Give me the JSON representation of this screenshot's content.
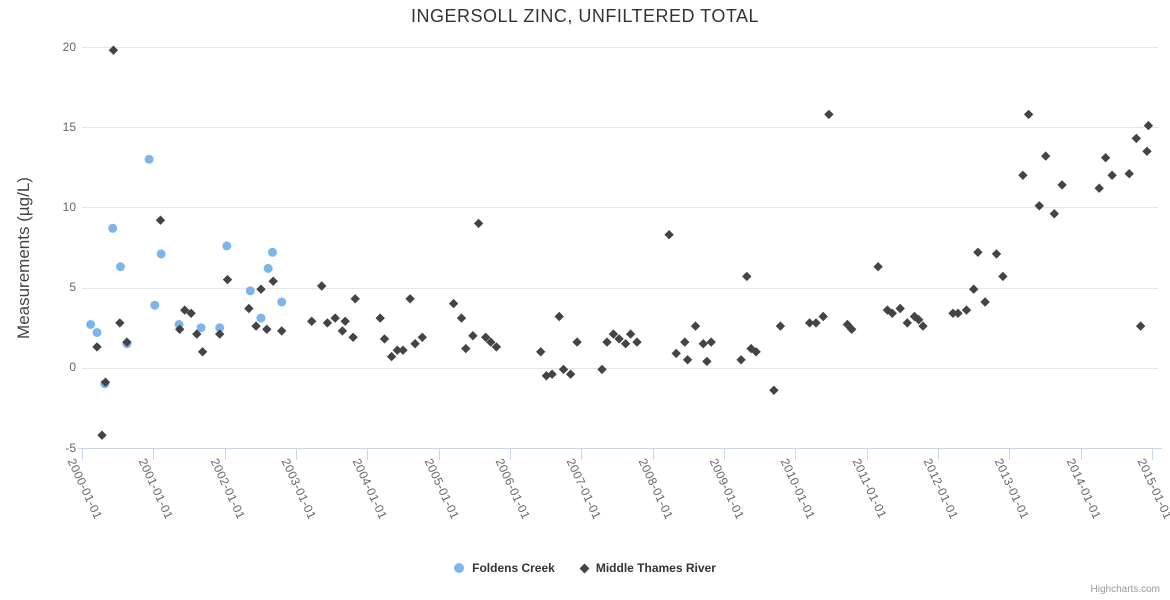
{
  "credit": "Highcharts.com",
  "colors": {
    "title_text": "#333333",
    "axis_title_text": "#444444",
    "axis_label_text": "#666666",
    "grid_line": "#e6e6e6",
    "axis_line": "#ccd6eb",
    "legend_text": "#333333",
    "credit_text": "#999999"
  },
  "chart_data": {
    "type": "scatter",
    "title": "INGERSOLL ZINC, UNFILTERED TOTAL",
    "xlabel": "",
    "ylabel": "Measurements (µg/L)",
    "ylim": [
      -5,
      20
    ],
    "yticks": [
      -5,
      0,
      5,
      10,
      15,
      20
    ],
    "x_unit": "decimal years (dates)",
    "xtick_years": [
      2000,
      2001,
      2002,
      2003,
      2004,
      2005,
      2006,
      2007,
      2008,
      2009,
      2010,
      2011,
      2012,
      2013,
      2014,
      2015
    ],
    "xtick_labels": [
      "2000-01-01",
      "2001-01-01",
      "2002-01-01",
      "2003-01-01",
      "2004-01-01",
      "2005-01-01",
      "2006-01-01",
      "2007-01-01",
      "2008-01-01",
      "2009-01-01",
      "2010-01-01",
      "2011-01-01",
      "2012-01-01",
      "2013-01-01",
      "2014-01-01",
      "2015-01-01"
    ],
    "grid": "horizontal",
    "legend_position": "bottom-center",
    "series": [
      {
        "name": "Foldens Creek",
        "marker": "circle",
        "color": "#7cb5ec",
        "data": [
          [
            2000.12,
            2.7
          ],
          [
            2000.21,
            2.2
          ],
          [
            2000.32,
            -1.0
          ],
          [
            2000.43,
            8.7
          ],
          [
            2000.54,
            6.3
          ],
          [
            2000.63,
            1.5
          ],
          [
            2000.94,
            13.0
          ],
          [
            2001.02,
            3.9
          ],
          [
            2001.11,
            7.1
          ],
          [
            2001.36,
            2.7
          ],
          [
            2001.67,
            2.5
          ],
          [
            2001.93,
            2.5
          ],
          [
            2002.03,
            7.6
          ],
          [
            2002.36,
            4.8
          ],
          [
            2002.51,
            3.1
          ],
          [
            2002.61,
            6.2
          ],
          [
            2002.67,
            7.2
          ],
          [
            2002.8,
            4.1
          ]
        ]
      },
      {
        "name": "Middle Thames River",
        "marker": "diamond",
        "color": "#434348",
        "data": [
          [
            2000.21,
            1.3
          ],
          [
            2000.28,
            -4.2
          ],
          [
            2000.33,
            -0.9
          ],
          [
            2000.44,
            19.8
          ],
          [
            2000.53,
            2.8
          ],
          [
            2000.63,
            1.6
          ],
          [
            2001.1,
            9.2
          ],
          [
            2001.37,
            2.4
          ],
          [
            2001.44,
            3.6
          ],
          [
            2001.53,
            3.4
          ],
          [
            2001.61,
            2.1
          ],
          [
            2001.69,
            1.0
          ],
          [
            2001.93,
            2.1
          ],
          [
            2002.04,
            5.5
          ],
          [
            2002.34,
            3.7
          ],
          [
            2002.44,
            2.6
          ],
          [
            2002.51,
            4.9
          ],
          [
            2002.59,
            2.4
          ],
          [
            2002.68,
            5.4
          ],
          [
            2002.8,
            2.3
          ],
          [
            2003.22,
            2.9
          ],
          [
            2003.36,
            5.1
          ],
          [
            2003.44,
            2.8
          ],
          [
            2003.55,
            3.1
          ],
          [
            2003.65,
            2.3
          ],
          [
            2003.69,
            2.9
          ],
          [
            2003.8,
            1.9
          ],
          [
            2003.83,
            4.3
          ],
          [
            2004.18,
            3.1
          ],
          [
            2004.24,
            1.8
          ],
          [
            2004.34,
            0.7
          ],
          [
            2004.42,
            1.1
          ],
          [
            2004.5,
            1.1
          ],
          [
            2004.6,
            4.3
          ],
          [
            2004.67,
            1.5
          ],
          [
            2004.77,
            1.9
          ],
          [
            2005.21,
            4.0
          ],
          [
            2005.32,
            3.1
          ],
          [
            2005.38,
            1.2
          ],
          [
            2005.48,
            2.0
          ],
          [
            2005.56,
            9.0
          ],
          [
            2005.66,
            1.9
          ],
          [
            2005.73,
            1.6
          ],
          [
            2005.81,
            1.3
          ],
          [
            2006.43,
            1.0
          ],
          [
            2006.51,
            -0.5
          ],
          [
            2006.59,
            -0.4
          ],
          [
            2006.69,
            3.2
          ],
          [
            2006.75,
            -0.1
          ],
          [
            2006.85,
            -0.4
          ],
          [
            2006.94,
            1.6
          ],
          [
            2007.29,
            -0.1
          ],
          [
            2007.36,
            1.6
          ],
          [
            2007.45,
            2.1
          ],
          [
            2007.53,
            1.8
          ],
          [
            2007.62,
            1.5
          ],
          [
            2007.69,
            2.1
          ],
          [
            2007.78,
            1.6
          ],
          [
            2008.23,
            8.3
          ],
          [
            2008.33,
            0.9
          ],
          [
            2008.45,
            1.6
          ],
          [
            2008.49,
            0.5
          ],
          [
            2008.6,
            2.6
          ],
          [
            2008.71,
            1.5
          ],
          [
            2008.76,
            0.4
          ],
          [
            2008.82,
            1.6
          ],
          [
            2009.24,
            0.5
          ],
          [
            2009.32,
            5.7
          ],
          [
            2009.38,
            1.2
          ],
          [
            2009.45,
            1.0
          ],
          [
            2009.7,
            -1.4
          ],
          [
            2009.79,
            2.6
          ],
          [
            2010.2,
            2.8
          ],
          [
            2010.29,
            2.8
          ],
          [
            2010.39,
            3.2
          ],
          [
            2010.47,
            15.8
          ],
          [
            2010.73,
            2.7
          ],
          [
            2010.79,
            2.4
          ],
          [
            2011.16,
            6.3
          ],
          [
            2011.29,
            3.6
          ],
          [
            2011.36,
            3.4
          ],
          [
            2011.47,
            3.7
          ],
          [
            2011.57,
            2.8
          ],
          [
            2011.67,
            3.2
          ],
          [
            2011.73,
            3.0
          ],
          [
            2011.79,
            2.6
          ],
          [
            2012.21,
            3.4
          ],
          [
            2012.28,
            3.4
          ],
          [
            2012.4,
            3.6
          ],
          [
            2012.5,
            4.9
          ],
          [
            2012.56,
            7.2
          ],
          [
            2012.66,
            4.1
          ],
          [
            2012.82,
            7.1
          ],
          [
            2012.91,
            5.7
          ],
          [
            2013.19,
            12.0
          ],
          [
            2013.27,
            15.8
          ],
          [
            2013.42,
            10.1
          ],
          [
            2013.51,
            13.2
          ],
          [
            2013.63,
            9.6
          ],
          [
            2013.74,
            11.4
          ],
          [
            2014.26,
            11.2
          ],
          [
            2014.35,
            13.1
          ],
          [
            2014.44,
            12.0
          ],
          [
            2014.68,
            12.1
          ],
          [
            2014.78,
            14.3
          ],
          [
            2014.84,
            2.6
          ],
          [
            2014.93,
            13.5
          ],
          [
            2014.95,
            15.1
          ]
        ]
      }
    ]
  }
}
